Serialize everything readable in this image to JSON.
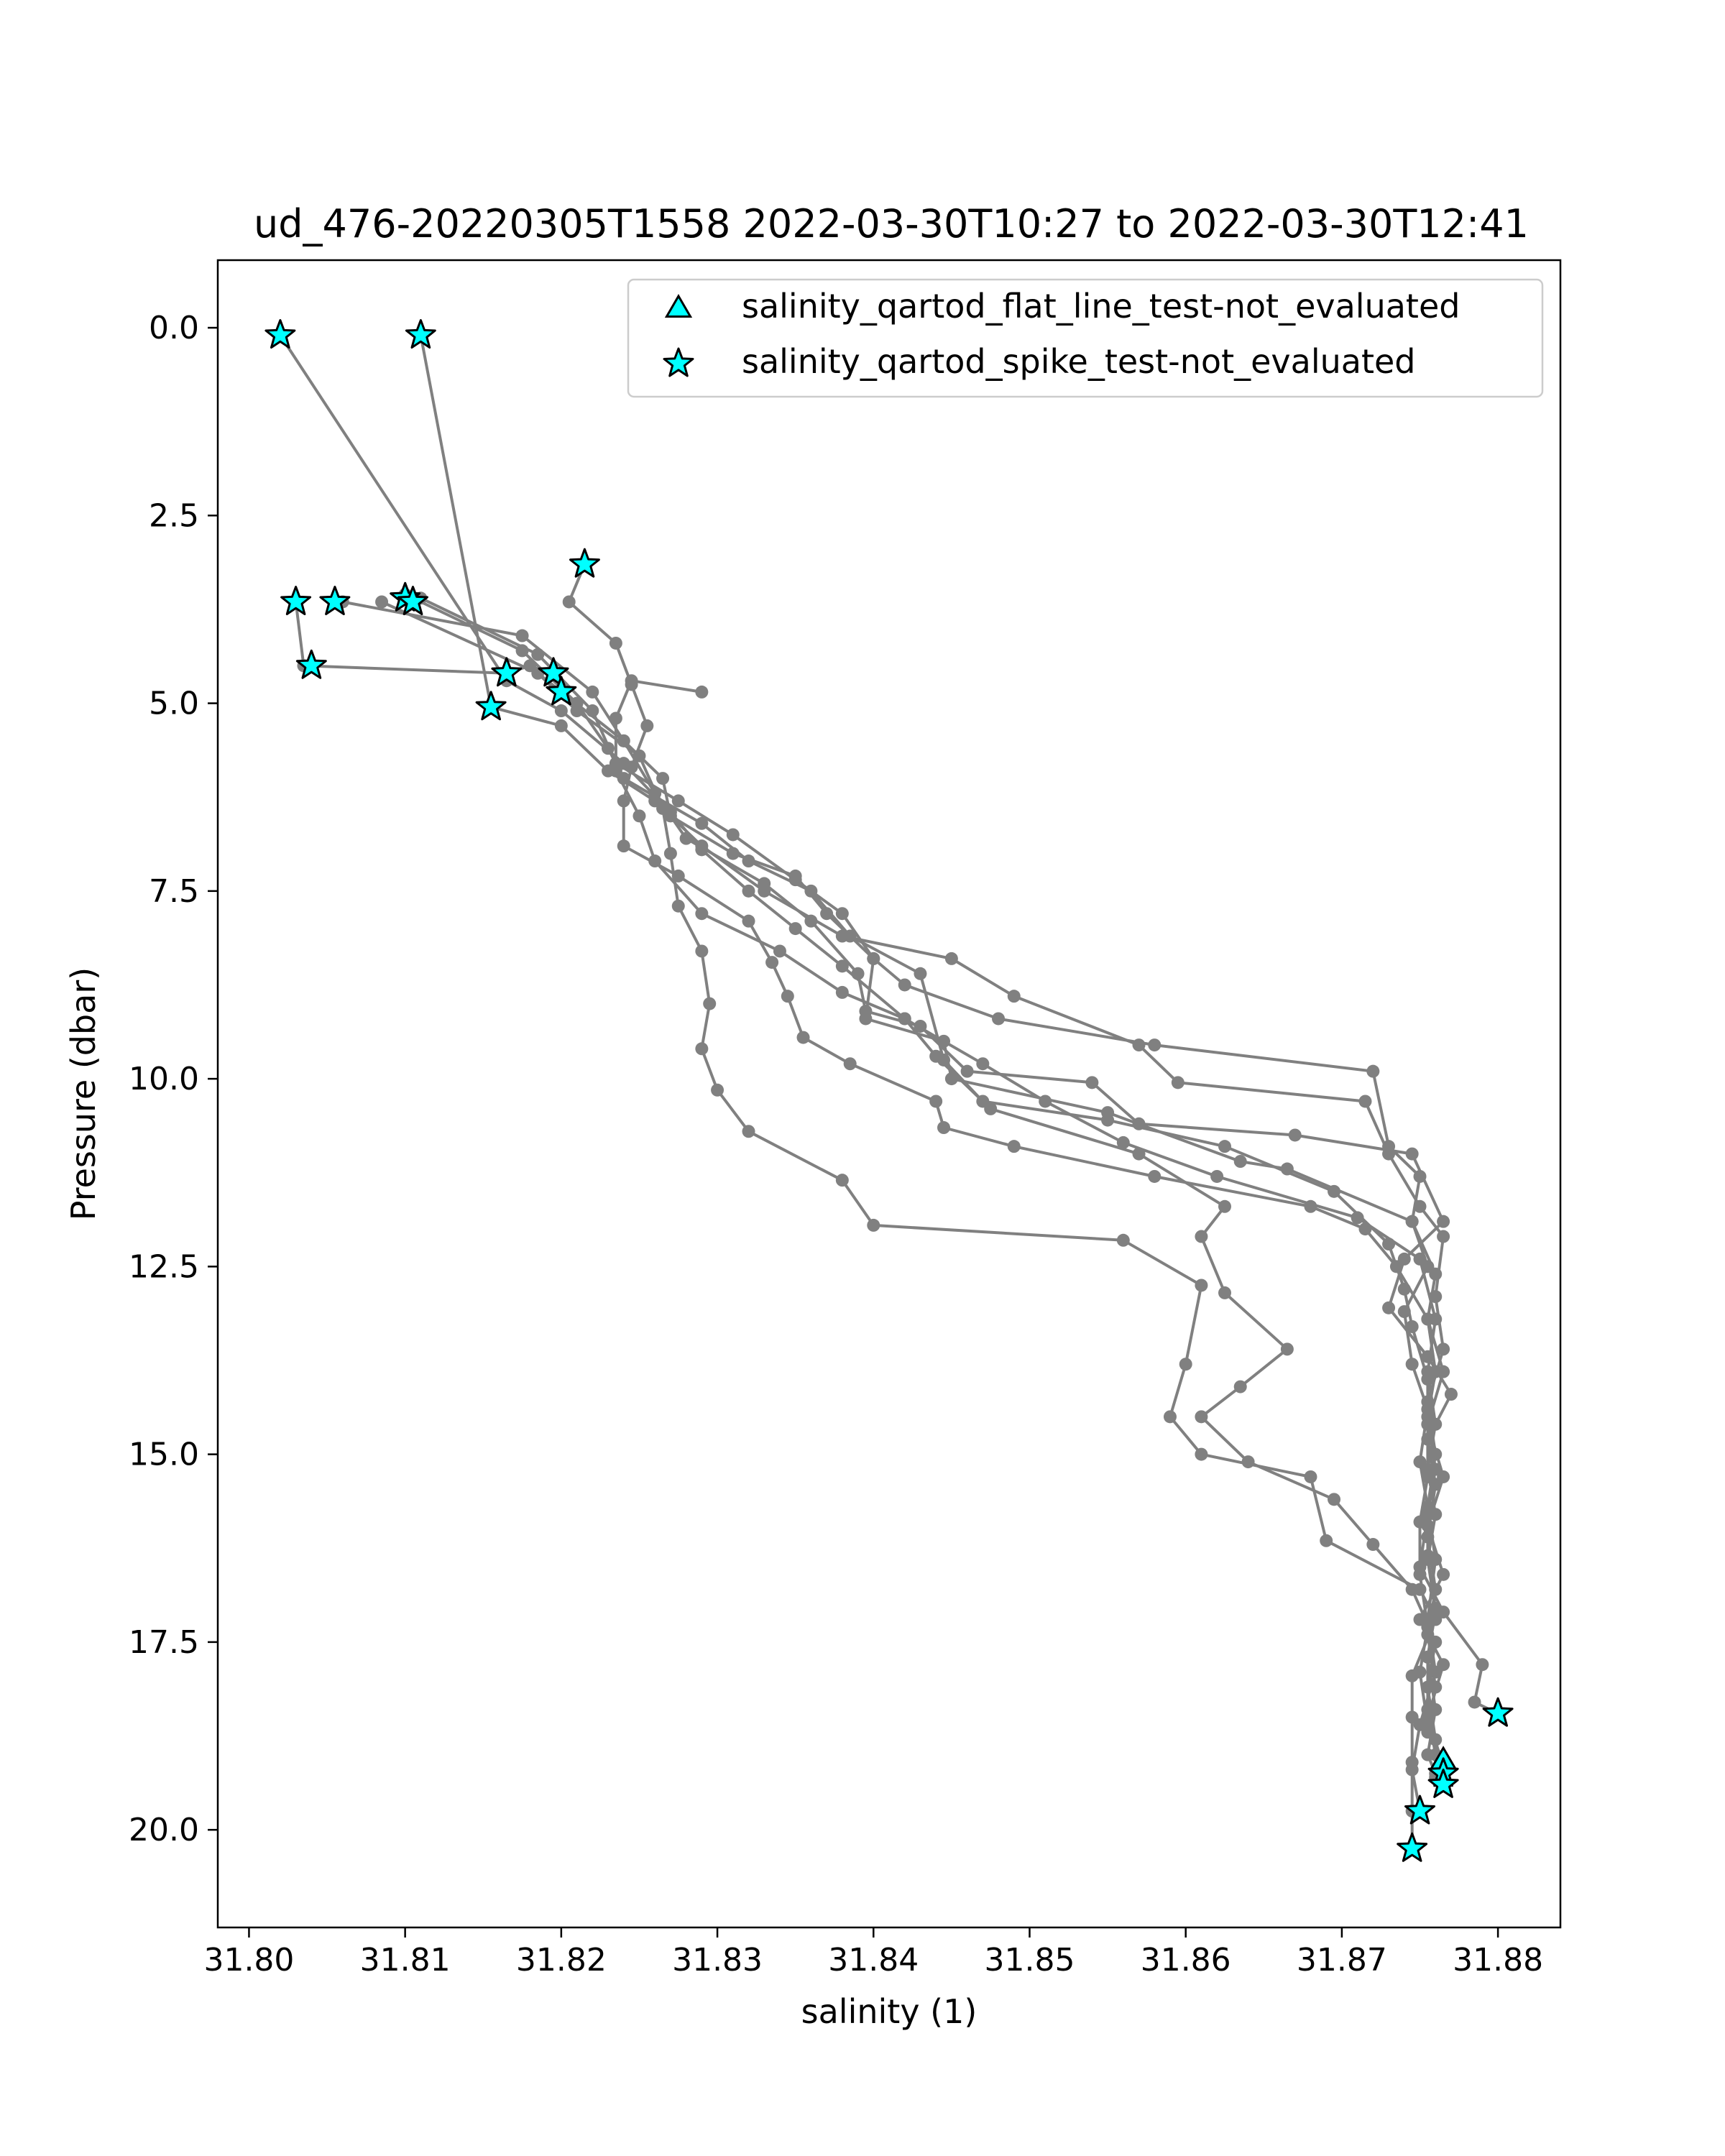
{
  "chart_data": {
    "type": "line",
    "title": "ud_476-20220305T1558 2022-03-30T10:27 to 2022-03-30T12:41",
    "xlabel": "salinity (1)",
    "ylabel": "Pressure (dbar)",
    "xlim": [
      31.798,
      31.884
    ],
    "ylim": [
      21.3,
      -0.9
    ],
    "y_inverted": true,
    "x_ticks": [
      31.8,
      31.81,
      31.82,
      31.83,
      31.84,
      31.85,
      31.86,
      31.87,
      31.88
    ],
    "x_tick_labels": [
      "31.80",
      "31.81",
      "31.82",
      "31.83",
      "31.84",
      "31.85",
      "31.86",
      "31.87",
      "31.88"
    ],
    "y_ticks": [
      0.0,
      2.5,
      5.0,
      7.5,
      10.0,
      12.5,
      15.0,
      17.5,
      20.0
    ],
    "y_tick_labels": [
      "0.0",
      "2.5",
      "5.0",
      "7.5",
      "10.0",
      "12.5",
      "15.0",
      "17.5",
      "20.0"
    ],
    "grid": false,
    "legend_position": "top-right",
    "line_color": "#808080",
    "marker_fill": "#00ffff",
    "marker_edge": "#000000",
    "series": [
      {
        "profile": 1,
        "points": [
          [
            31.802,
            0.1
          ],
          [
            31.8165,
            4.7
          ],
          [
            31.82,
            5.1
          ],
          [
            31.824,
            5.8
          ],
          [
            31.827,
            6.45
          ],
          [
            31.829,
            6.95
          ],
          [
            31.832,
            7.5
          ],
          [
            31.835,
            8.0
          ],
          [
            31.838,
            8.5
          ],
          [
            31.842,
            9.2
          ],
          [
            31.847,
            9.8
          ],
          [
            31.851,
            10.3
          ],
          [
            31.856,
            10.85
          ],
          [
            31.862,
            11.3
          ],
          [
            31.871,
            11.85
          ],
          [
            31.875,
            12.4
          ],
          [
            31.876,
            13.2
          ],
          [
            31.8755,
            13.9
          ],
          [
            31.876,
            14.6
          ],
          [
            31.8755,
            15.2
          ],
          [
            31.876,
            15.8
          ],
          [
            31.8755,
            16.4
          ],
          [
            31.876,
            17.1
          ],
          [
            31.8755,
            17.7
          ],
          [
            31.876,
            18.4
          ],
          [
            31.8755,
            19.0
          ],
          [
            31.876,
            19.25
          ]
        ]
      },
      {
        "profile": 2,
        "points": [
          [
            31.811,
            0.1
          ],
          [
            31.8155,
            5.05
          ],
          [
            31.82,
            5.3
          ],
          [
            31.823,
            5.9
          ],
          [
            31.826,
            6.3
          ],
          [
            31.829,
            6.9
          ],
          [
            31.833,
            7.5
          ],
          [
            31.838,
            8.1
          ],
          [
            31.845,
            8.4
          ],
          [
            31.849,
            8.9
          ],
          [
            31.857,
            9.55
          ],
          [
            31.8595,
            10.05
          ],
          [
            31.8715,
            10.3
          ],
          [
            31.873,
            11.0
          ],
          [
            31.875,
            11.7
          ],
          [
            31.8765,
            12.1
          ],
          [
            31.876,
            12.9
          ],
          [
            31.8765,
            13.6
          ],
          [
            31.8755,
            14.3
          ],
          [
            31.876,
            15.0
          ],
          [
            31.8755,
            15.7
          ],
          [
            31.876,
            16.4
          ],
          [
            31.8755,
            17.2
          ],
          [
            31.876,
            17.9
          ],
          [
            31.875,
            18.6
          ],
          [
            31.8745,
            19.2
          ],
          [
            31.875,
            19.75
          ]
        ]
      },
      {
        "profile": 3,
        "points": [
          [
            31.803,
            3.65
          ],
          [
            31.8035,
            4.5
          ],
          [
            31.8165,
            4.6
          ],
          [
            31.818,
            4.5
          ],
          [
            31.821,
            5.1
          ],
          [
            31.825,
            5.7
          ],
          [
            31.8265,
            6.4
          ],
          [
            31.827,
            7.0
          ],
          [
            31.8275,
            7.7
          ],
          [
            31.829,
            8.3
          ],
          [
            31.8295,
            9.0
          ],
          [
            31.829,
            9.6
          ],
          [
            31.83,
            10.15
          ],
          [
            31.832,
            10.7
          ],
          [
            31.838,
            11.35
          ],
          [
            31.84,
            11.95
          ],
          [
            31.856,
            12.15
          ],
          [
            31.861,
            12.75
          ],
          [
            31.86,
            13.8
          ],
          [
            31.859,
            14.5
          ],
          [
            31.861,
            15.0
          ],
          [
            31.868,
            15.3
          ],
          [
            31.869,
            16.15
          ],
          [
            31.875,
            16.8
          ],
          [
            31.876,
            17.2
          ],
          [
            31.8745,
            17.95
          ],
          [
            31.8745,
            18.5
          ],
          [
            31.8745,
            19.1
          ],
          [
            31.8745,
            19.75
          ],
          [
            31.8745,
            20.25
          ]
        ]
      },
      {
        "profile": 4,
        "points": [
          [
            31.8085,
            3.65
          ],
          [
            31.8185,
            4.6
          ],
          [
            31.824,
            5.5
          ],
          [
            31.8265,
            6.0
          ],
          [
            31.827,
            6.5
          ],
          [
            31.831,
            7.0
          ],
          [
            31.835,
            7.3
          ],
          [
            31.837,
            7.8
          ],
          [
            31.84,
            8.4
          ],
          [
            31.842,
            8.75
          ],
          [
            31.848,
            9.2
          ],
          [
            31.858,
            9.55
          ],
          [
            31.872,
            9.9
          ],
          [
            31.873,
            10.9
          ],
          [
            31.875,
            11.3
          ],
          [
            31.8745,
            11.9
          ],
          [
            31.876,
            12.6
          ],
          [
            31.8755,
            13.2
          ],
          [
            31.876,
            13.9
          ],
          [
            31.8755,
            14.5
          ],
          [
            31.876,
            15.2
          ],
          [
            31.8755,
            15.8
          ],
          [
            31.875,
            16.5
          ],
          [
            31.8765,
            17.1
          ],
          [
            31.879,
            17.8
          ],
          [
            31.8785,
            18.3
          ],
          [
            31.88,
            18.45
          ]
        ]
      },
      {
        "profile": 5,
        "points": [
          [
            31.806,
            3.65
          ],
          [
            31.8175,
            4.1
          ],
          [
            31.822,
            4.85
          ],
          [
            31.824,
            5.5
          ],
          [
            31.826,
            6.2
          ],
          [
            31.828,
            6.8
          ],
          [
            31.833,
            7.4
          ],
          [
            31.836,
            7.9
          ],
          [
            31.839,
            8.6
          ],
          [
            31.8395,
            9.1
          ],
          [
            31.843,
            9.3
          ],
          [
            31.846,
            9.9
          ],
          [
            31.854,
            10.05
          ],
          [
            31.857,
            10.6
          ],
          [
            31.867,
            10.75
          ],
          [
            31.8745,
            11.0
          ],
          [
            31.8765,
            11.9
          ],
          [
            31.874,
            12.4
          ],
          [
            31.873,
            13.05
          ],
          [
            31.8755,
            13.7
          ],
          [
            31.877,
            14.2
          ],
          [
            31.8755,
            14.8
          ],
          [
            31.876,
            15.4
          ],
          [
            31.8755,
            16.1
          ],
          [
            31.876,
            16.8
          ],
          [
            31.8755,
            17.4
          ],
          [
            31.876,
            18.1
          ],
          [
            31.8755,
            18.7
          ],
          [
            31.8765,
            19.1
          ]
        ]
      },
      {
        "profile": 6,
        "points": [
          [
            31.81,
            3.55
          ],
          [
            31.8175,
            4.3
          ],
          [
            31.821,
            5.0
          ],
          [
            31.823,
            5.6
          ],
          [
            31.824,
            6.0
          ],
          [
            31.829,
            6.6
          ],
          [
            31.832,
            7.1
          ],
          [
            31.836,
            7.5
          ],
          [
            31.8385,
            8.1
          ],
          [
            31.843,
            8.6
          ],
          [
            31.8445,
            9.75
          ],
          [
            31.847,
            10.3
          ],
          [
            31.855,
            10.55
          ],
          [
            31.8625,
            10.9
          ],
          [
            31.8695,
            11.5
          ],
          [
            31.873,
            12.2
          ],
          [
            31.874,
            12.8
          ],
          [
            31.8745,
            13.3
          ],
          [
            31.8755,
            14.0
          ],
          [
            31.8755,
            14.6
          ],
          [
            31.8755,
            15.3
          ],
          [
            31.875,
            15.9
          ],
          [
            31.875,
            16.6
          ],
          [
            31.8755,
            17.3
          ],
          [
            31.875,
            17.9
          ],
          [
            31.8755,
            18.6
          ],
          [
            31.8765,
            19.2
          ],
          [
            31.8765,
            19.4
          ]
        ]
      },
      {
        "profile": 7,
        "points": [
          [
            31.811,
            3.6
          ],
          [
            31.8185,
            4.35
          ],
          [
            31.822,
            5.1
          ],
          [
            31.8235,
            5.8
          ],
          [
            31.8275,
            6.3
          ],
          [
            31.831,
            6.75
          ],
          [
            31.835,
            7.35
          ],
          [
            31.838,
            7.8
          ],
          [
            31.84,
            8.4
          ],
          [
            31.8395,
            9.2
          ],
          [
            31.8445,
            9.5
          ],
          [
            31.845,
            10.0
          ],
          [
            31.855,
            10.45
          ],
          [
            31.8635,
            11.1
          ],
          [
            31.8665,
            11.2
          ],
          [
            31.8745,
            11.9
          ],
          [
            31.8755,
            12.5
          ],
          [
            31.874,
            13.1
          ],
          [
            31.8745,
            13.8
          ],
          [
            31.8755,
            14.4
          ],
          [
            31.875,
            15.1
          ],
          [
            31.8755,
            15.7
          ],
          [
            31.8755,
            16.35
          ],
          [
            31.876,
            17.05
          ],
          [
            31.8755,
            17.7
          ],
          [
            31.8755,
            18.4
          ],
          [
            31.876,
            19.0
          ],
          [
            31.8765,
            19.2
          ]
        ]
      },
      {
        "profile": 8,
        "points": [
          [
            31.8215,
            3.15
          ],
          [
            31.8205,
            3.65
          ],
          [
            31.8235,
            4.2
          ],
          [
            31.8245,
            4.75
          ],
          [
            31.8255,
            5.3
          ],
          [
            31.8245,
            5.85
          ],
          [
            31.824,
            6.3
          ],
          [
            31.824,
            6.9
          ],
          [
            31.8275,
            7.3
          ],
          [
            31.832,
            7.9
          ],
          [
            31.8335,
            8.45
          ],
          [
            31.8345,
            8.9
          ],
          [
            31.8355,
            9.45
          ],
          [
            31.8385,
            9.8
          ],
          [
            31.844,
            10.3
          ],
          [
            31.8445,
            10.65
          ],
          [
            31.849,
            10.9
          ],
          [
            31.858,
            11.3
          ],
          [
            31.868,
            11.7
          ],
          [
            31.8715,
            12.0
          ],
          [
            31.8735,
            12.5
          ],
          [
            31.8755,
            13.2
          ],
          [
            31.8765,
            13.9
          ],
          [
            31.8755,
            14.6
          ],
          [
            31.8765,
            15.3
          ],
          [
            31.8755,
            15.95
          ],
          [
            31.8765,
            16.6
          ],
          [
            31.875,
            17.2
          ],
          [
            31.8765,
            17.8
          ],
          [
            31.8755,
            18.5
          ],
          [
            31.8765,
            19.15
          ]
        ]
      },
      {
        "profile": 9,
        "points": [
          [
            31.829,
            4.85
          ],
          [
            31.8245,
            4.7
          ],
          [
            31.8235,
            5.2
          ],
          [
            31.8235,
            5.9
          ],
          [
            31.825,
            6.5
          ],
          [
            31.826,
            7.1
          ],
          [
            31.829,
            7.8
          ],
          [
            31.834,
            8.3
          ],
          [
            31.838,
            8.85
          ],
          [
            31.842,
            9.2
          ],
          [
            31.844,
            9.7
          ],
          [
            31.8475,
            10.4
          ],
          [
            31.857,
            11.0
          ],
          [
            31.8625,
            11.7
          ],
          [
            31.861,
            12.1
          ],
          [
            31.8625,
            12.85
          ],
          [
            31.8665,
            13.6
          ],
          [
            31.8635,
            14.1
          ],
          [
            31.861,
            14.5
          ],
          [
            31.864,
            15.1
          ],
          [
            31.8695,
            15.6
          ],
          [
            31.872,
            16.2
          ],
          [
            31.8745,
            16.8
          ],
          [
            31.876,
            17.5
          ],
          [
            31.8755,
            18.1
          ],
          [
            31.876,
            18.8
          ],
          [
            31.876,
            19.3
          ]
        ]
      }
    ],
    "flat_line_markers": [
      [
        31.8765,
        19.1
      ]
    ],
    "spike_markers": [
      [
        31.802,
        0.1
      ],
      [
        31.811,
        0.1
      ],
      [
        31.8215,
        3.15
      ],
      [
        31.803,
        3.65
      ],
      [
        31.8055,
        3.65
      ],
      [
        31.81,
        3.6
      ],
      [
        31.8105,
        3.65
      ],
      [
        31.804,
        4.5
      ],
      [
        31.8165,
        4.6
      ],
      [
        31.8195,
        4.6
      ],
      [
        31.82,
        4.85
      ],
      [
        31.8155,
        5.05
      ],
      [
        31.88,
        18.45
      ],
      [
        31.8765,
        19.25
      ],
      [
        31.8765,
        19.4
      ],
      [
        31.875,
        19.75
      ],
      [
        31.8745,
        20.25
      ]
    ],
    "legend": [
      {
        "marker": "triangle",
        "label": "salinity_qartod_flat_line_test-not_evaluated"
      },
      {
        "marker": "star",
        "label": "salinity_qartod_spike_test-not_evaluated"
      }
    ]
  }
}
